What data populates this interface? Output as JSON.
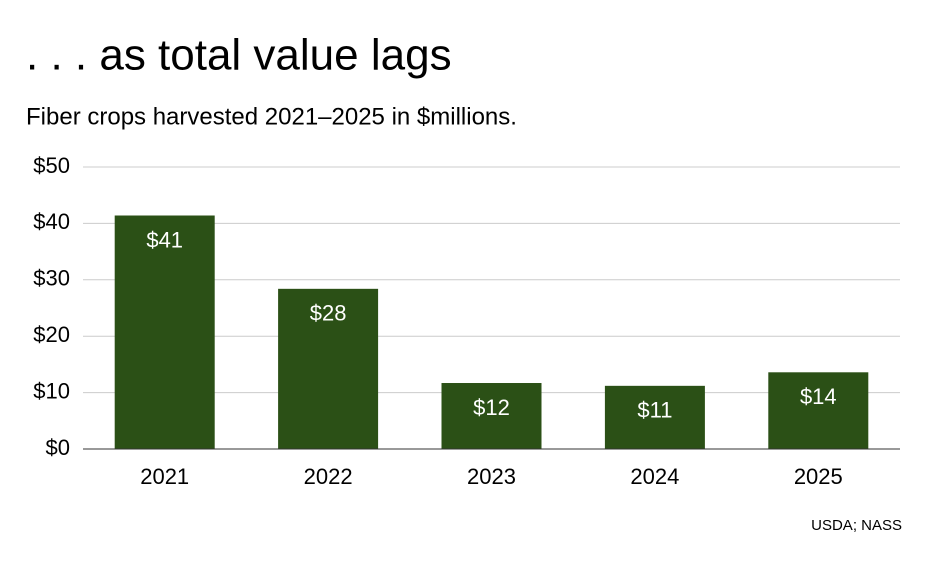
{
  "chart_data": {
    "type": "bar",
    "title": ". . . as total value lags",
    "subtitle": "Fiber crops harvested 2021–2025 in $millions.",
    "categories": [
      "2021",
      "2022",
      "2023",
      "2024",
      "2025"
    ],
    "values": [
      41.4,
      28.4,
      11.7,
      11.2,
      13.6
    ],
    "value_labels": [
      "$41",
      "$28",
      "$12",
      "$11",
      "$14"
    ],
    "color": "#2b5016",
    "ylim": [
      0,
      50
    ],
    "yticks": [
      {
        "value": 0,
        "label": "$0"
      },
      {
        "value": 10,
        "label": "$10"
      },
      {
        "value": 20,
        "label": "$20"
      },
      {
        "value": 30,
        "label": "$30"
      },
      {
        "value": 40,
        "label": "$40"
      },
      {
        "value": 50,
        "label": "$50"
      }
    ],
    "grid": true,
    "source": "USDA; NASS"
  }
}
